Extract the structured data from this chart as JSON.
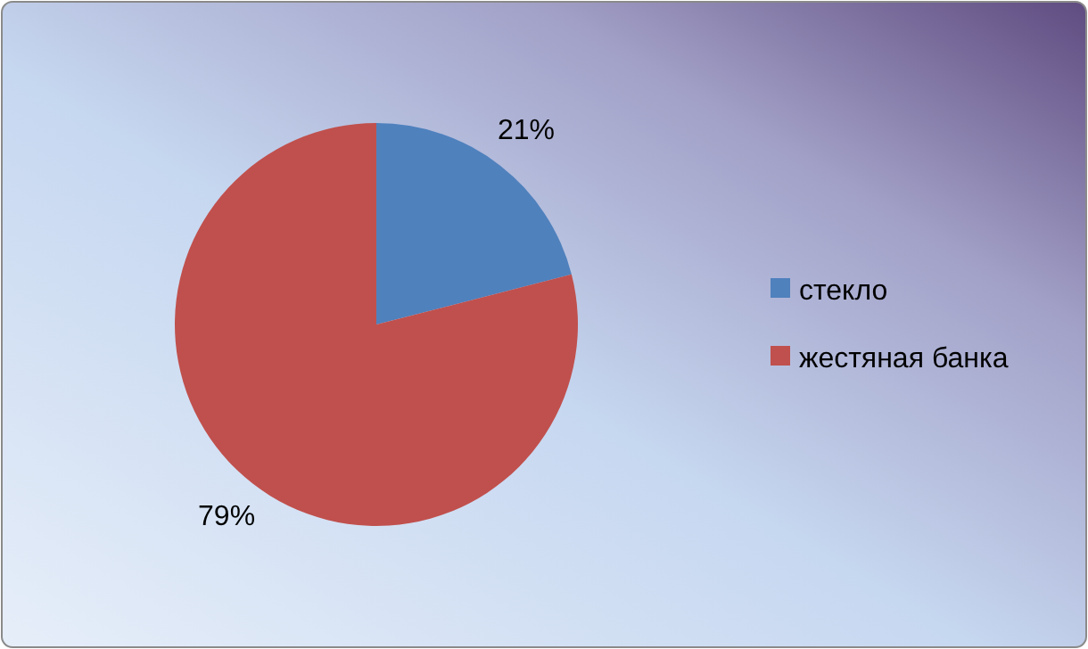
{
  "chart_data": {
    "type": "pie",
    "categories": [
      "стекло",
      "жестяная банка"
    ],
    "values": [
      21,
      79
    ],
    "value_labels": [
      "21%",
      "79%"
    ],
    "colors": [
      "#4f81bd",
      "#c0504d"
    ],
    "legend": "right"
  }
}
